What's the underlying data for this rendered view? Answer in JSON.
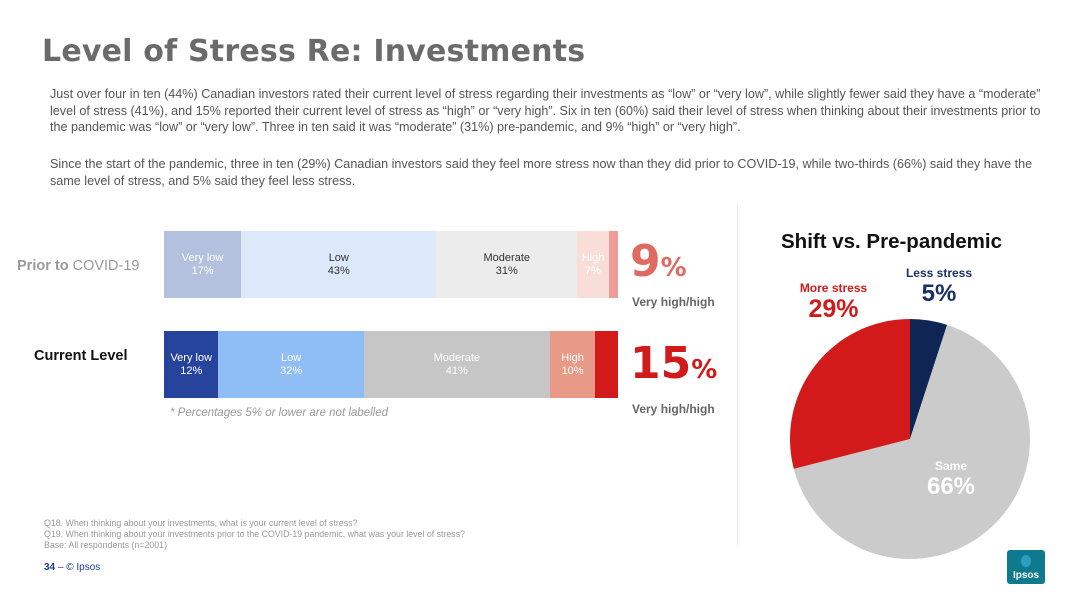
{
  "title": "Level of Stress Re: Investments",
  "paragraphs": [
    "Just over four in ten (44%) Canadian investors rated their current level of stress regarding their investments as “low” or “very low”, while slightly fewer said they have a “moderate” level of stress (41%), and 15% reported their current level of stress as “high” or “very high”.  Six in ten (60%) said their level of stress when thinking about their investments prior to the pandemic was “low” or “very low”. Three in ten said it was “moderate” (31%) pre-pandemic, and 9% “high” or “very high”.",
    "Since the start of the pandemic, three in ten (29%) Canadian investors said they feel more stress now than they did prior to COVID-19, while two-thirds (66%) said they have the same level of stress, and 5% said they feel less stress."
  ],
  "bar_section": {
    "prior_label_bold": "Prior to",
    "prior_label_rest": " COVID-19",
    "current_label": "Current Level",
    "prior_total_num": "9",
    "prior_total_sym": "%",
    "current_total_num": "15",
    "current_total_sym": "%",
    "total_caption": "Very high/high",
    "note": "* Percentages 5% or lower are not labelled"
  },
  "pie_section": {
    "title": "Shift vs. Pre-pandemic",
    "more_label": "More stress",
    "more_value": "29%",
    "less_label": "Less stress",
    "less_value": "5%",
    "same_label": "Same",
    "same_value": "66%"
  },
  "chart_data": [
    {
      "type": "bar",
      "orientation": "horizontal-stacked",
      "categories": [
        "Prior to COVID-19",
        "Current Level"
      ],
      "series": [
        {
          "name": "Very low",
          "values": [
            17,
            12
          ],
          "labels": [
            "17%",
            "12%"
          ],
          "colors": [
            "#b3c0de",
            "#27449c"
          ],
          "text_colors": [
            "#ffffff",
            "#ffffff"
          ]
        },
        {
          "name": "Low",
          "values": [
            43,
            32
          ],
          "labels": [
            "43%",
            "32%"
          ],
          "colors": [
            "#dce9fb",
            "#8fbdf5"
          ],
          "text_colors": [
            "#333333",
            "#ffffff"
          ]
        },
        {
          "name": "Moderate",
          "values": [
            31,
            41
          ],
          "labels": [
            "31%",
            "41%"
          ],
          "colors": [
            "#ececec",
            "#c6c6c6"
          ],
          "text_colors": [
            "#333333",
            "#ffffff"
          ]
        },
        {
          "name": "High",
          "values": [
            7,
            10
          ],
          "labels": [
            "7%",
            "10%"
          ],
          "colors": [
            "#f8ddd9",
            "#e99a86"
          ],
          "text_colors": [
            "#ffffff",
            "#ffffff"
          ]
        },
        {
          "name": "Very high",
          "values": [
            2,
            5
          ],
          "labels": [
            "",
            ""
          ],
          "colors": [
            "#ee9c98",
            "#d21a1a"
          ],
          "text_colors": [
            "#ffffff",
            "#ffffff"
          ]
        }
      ],
      "total_scale": 100
    },
    {
      "type": "pie",
      "slices": [
        {
          "name": "Less stress",
          "value": 5,
          "color": "#0f2554"
        },
        {
          "name": "Same",
          "value": 66,
          "color": "#cbcbcb"
        },
        {
          "name": "More stress",
          "value": 29,
          "color": "#d21a1a"
        }
      ],
      "start_angle_deg": 0,
      "direction": "clockwise"
    }
  ],
  "footnotes": [
    "Q18. When thinking about your investments, what is your current level of stress?",
    "Q19. When thinking about your investments prior to the COVID-19 pandemic, what was your level of stress?",
    "Base: All respondents (n=2001)"
  ],
  "footer": {
    "page_number": "34",
    "separator": " –  ",
    "copyright": "© Ipsos"
  },
  "logo_text": "Ipsos"
}
